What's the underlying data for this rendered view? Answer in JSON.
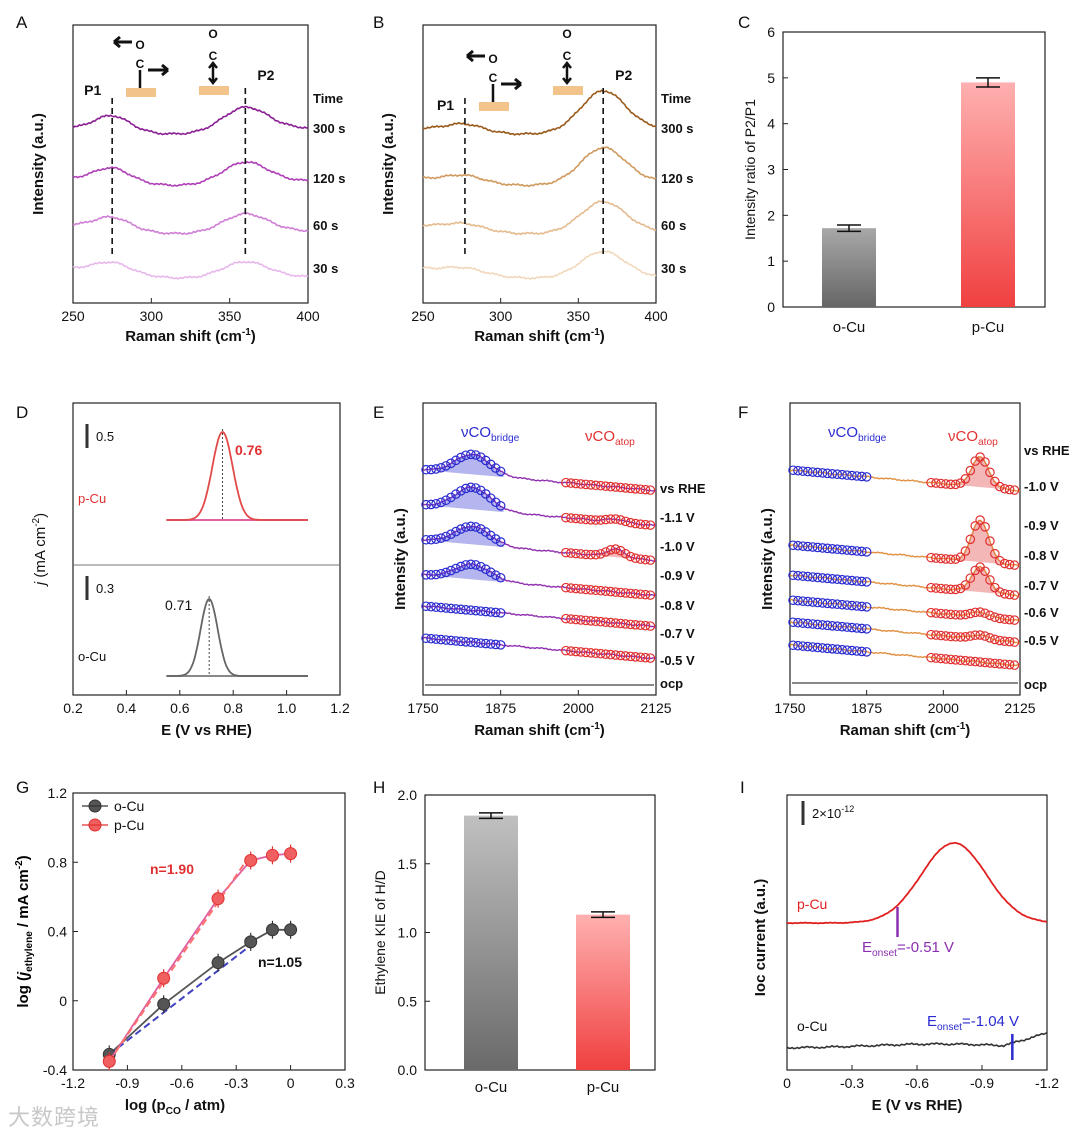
{
  "watermark": "大数跨境",
  "colors": {
    "purple": "#9b2fa6",
    "orange": "#b5651d",
    "blue": "#2b2bd0",
    "red": "#e03030",
    "gray": "#555555",
    "pink": "#e0407a",
    "violet": "#7a1fb0"
  },
  "chart_data": [
    {
      "panel": "A",
      "type": "line",
      "title": "",
      "xlabel": "Raman shift (cm⁻¹)",
      "ylabel": "Intensity (a.u.)",
      "xlim": [
        250,
        400
      ],
      "xticks": [
        250,
        300,
        350,
        400
      ],
      "peaks": [
        {
          "label": "P1",
          "x": 275
        },
        {
          "label": "P2",
          "x": 360
        }
      ],
      "legend_title": "Time",
      "series": [
        {
          "name": "300 s",
          "color": "#8a1f94"
        },
        {
          "name": "120 s",
          "color": "#b040b8"
        },
        {
          "name": "60 s",
          "color": "#cf7fd6"
        },
        {
          "name": "30 s",
          "color": "#e8b8ec"
        }
      ]
    },
    {
      "panel": "B",
      "type": "line",
      "title": "",
      "xlabel": "Raman shift (cm⁻¹)",
      "ylabel": "Intensity (a.u.)",
      "xlim": [
        250,
        400
      ],
      "xticks": [
        250,
        300,
        350,
        400
      ],
      "peaks": [
        {
          "label": "P1",
          "x": 277
        },
        {
          "label": "P2",
          "x": 366
        }
      ],
      "legend_title": "Time",
      "series": [
        {
          "name": "300 s",
          "color": "#9a5a1a"
        },
        {
          "name": "120 s",
          "color": "#d09a60"
        },
        {
          "name": "60 s",
          "color": "#e5bb90"
        },
        {
          "name": "30 s",
          "color": "#f2d8bc"
        }
      ]
    },
    {
      "panel": "C",
      "type": "bar",
      "categories": [
        "o-Cu",
        "p-Cu"
      ],
      "values": [
        1.72,
        4.9
      ],
      "errors": [
        0.07,
        0.1
      ],
      "ylabel": "Intensity ratio of P2/P1",
      "ylim": [
        0,
        6
      ],
      "yticks": [
        0,
        1,
        2,
        3,
        4,
        5,
        6
      ]
    },
    {
      "panel": "D",
      "type": "line",
      "xlabel": "E (V vs RHE)",
      "ylabel": "j (mA cm⁻²)",
      "xlim": [
        0.2,
        1.2
      ],
      "xticks": [
        "0.2",
        "0.4",
        "0.6",
        "0.8",
        "1.0",
        "1.2"
      ],
      "series": [
        {
          "name": "p-Cu",
          "peak_x": 0.76,
          "peak_label": "0.76",
          "scale_label": "0.5"
        },
        {
          "name": "o-Cu",
          "peak_x": 0.71,
          "peak_label": "0.71",
          "scale_label": "0.3"
        }
      ]
    },
    {
      "panel": "E",
      "type": "line",
      "xlabel": "Raman shift (cm⁻¹)",
      "ylabel": "Intensity (a.u.)",
      "xlim": [
        1750,
        2125
      ],
      "xticks": [
        1750,
        1875,
        2000,
        2125
      ],
      "band_labels": {
        "bridge": "νCO",
        "bridge_sub": "bridge",
        "atop": "νCO",
        "atop_sub": "atop"
      },
      "legend_title": "vs RHE",
      "potentials": [
        "-1.1 V",
        "-1.0 V",
        "-0.9 V",
        "-0.8 V",
        "-0.7 V",
        "-0.5 V",
        "ocp"
      ]
    },
    {
      "panel": "F",
      "type": "line",
      "xlabel": "Raman shift (cm⁻¹)",
      "ylabel": "Intensity (a.u.)",
      "xlim": [
        1750,
        2125
      ],
      "xticks": [
        1750,
        1875,
        2000,
        2125
      ],
      "band_labels": {
        "bridge": "νCO",
        "bridge_sub": "bridge",
        "atop": "νCO",
        "atop_sub": "atop"
      },
      "legend_title": "vs RHE",
      "potentials": [
        "-1.0 V",
        "-0.9 V",
        "-0.8 V",
        "-0.7 V",
        "-0.6 V",
        "-0.5 V",
        "ocp"
      ]
    },
    {
      "panel": "G",
      "type": "scatter",
      "xlabel": "log (p",
      "xlabel_sub": "CO",
      "xlabel_tail": " / atm)",
      "ylabel": "log (j",
      "ylabel_sub": "ethylene",
      "ylabel_tail": " / mA cm⁻²)",
      "xlim": [
        -1.2,
        0.3
      ],
      "ylim": [
        -0.4,
        1.2
      ],
      "xticks": [
        "-1.2",
        "-0.9",
        "-0.6",
        "-0.3",
        "0",
        "0.3"
      ],
      "yticks": [
        "-0.4",
        "0",
        "0.4",
        "0.8",
        "1.2"
      ],
      "series": [
        {
          "name": "o-Cu",
          "slope_label": "n=1.05",
          "x": [
            -1.0,
            -0.7,
            -0.4,
            -0.22,
            -0.1,
            0.0
          ],
          "y": [
            -0.31,
            -0.02,
            0.22,
            0.34,
            0.41,
            0.41
          ]
        },
        {
          "name": "p-Cu",
          "slope_label": "n=1.90",
          "x": [
            -1.0,
            -0.7,
            -0.4,
            -0.22,
            -0.1,
            0.0
          ],
          "y": [
            -0.35,
            0.13,
            0.59,
            0.81,
            0.84,
            0.85
          ]
        }
      ]
    },
    {
      "panel": "H",
      "type": "bar",
      "categories": [
        "o-Cu",
        "p-Cu"
      ],
      "values": [
        1.85,
        1.13
      ],
      "errors": [
        0.02,
        0.02
      ],
      "ylabel": "Ethylene KIE of H/D",
      "ylim": [
        0,
        2
      ],
      "yticks": [
        "0.0",
        "0.5",
        "1.0",
        "1.5",
        "2.0"
      ]
    },
    {
      "panel": "I",
      "type": "line",
      "xlabel": "E (V vs RHE)",
      "ylabel": "Ioc current (a.u.)",
      "xlim": [
        0,
        -1.2
      ],
      "xticks": [
        "0",
        "-0.3",
        "-0.6",
        "-0.9",
        "-1.2"
      ],
      "scale_label": "2×10⁻¹²",
      "series": [
        {
          "name": "p-Cu",
          "onset_label": "E",
          "onset_sub": "onset",
          "onset_value": "=-0.51 V"
        },
        {
          "name": "o-Cu",
          "onset_label": "E",
          "onset_sub": "onset",
          "onset_value": "=-1.04 V"
        }
      ]
    }
  ]
}
